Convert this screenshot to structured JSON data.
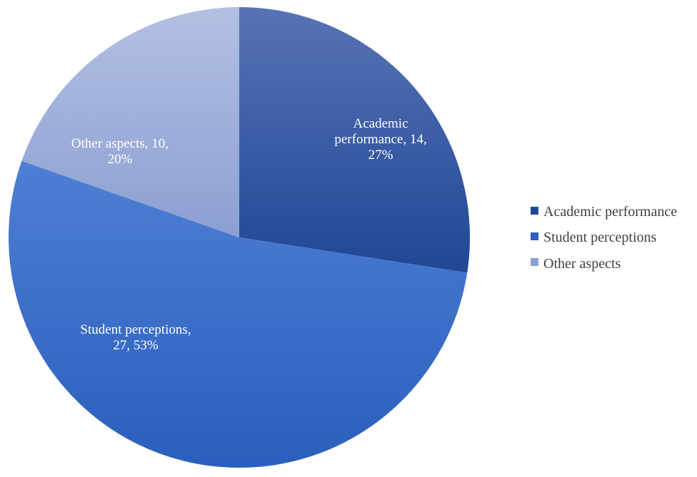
{
  "chart_data": {
    "type": "pie",
    "start_angle_deg": 0,
    "direction": "clockwise",
    "slices": [
      {
        "name": "Academic performance",
        "value": 14,
        "percent": "27%",
        "label_lines": [
          "Academic",
          "performance, 14,",
          "27%"
        ],
        "color_light": "#5873b4",
        "color_dark": "#1f4796"
      },
      {
        "name": "Student perceptions",
        "value": 27,
        "percent": "53%",
        "label_lines": [
          "Student perceptions,",
          "27, 53%"
        ],
        "color_light": "#4f7fd4",
        "color_dark": "#2a5fbd"
      },
      {
        "name": "Other aspects",
        "value": 10,
        "percent": "20%",
        "label_lines": [
          "Other aspects, 10,",
          "20%"
        ],
        "color_light": "#b3c0e3",
        "color_dark": "#8c9fd2"
      }
    ],
    "legend": {
      "position": "right",
      "items": [
        "Academic performance",
        "Student perceptions",
        "Other aspects"
      ]
    }
  }
}
